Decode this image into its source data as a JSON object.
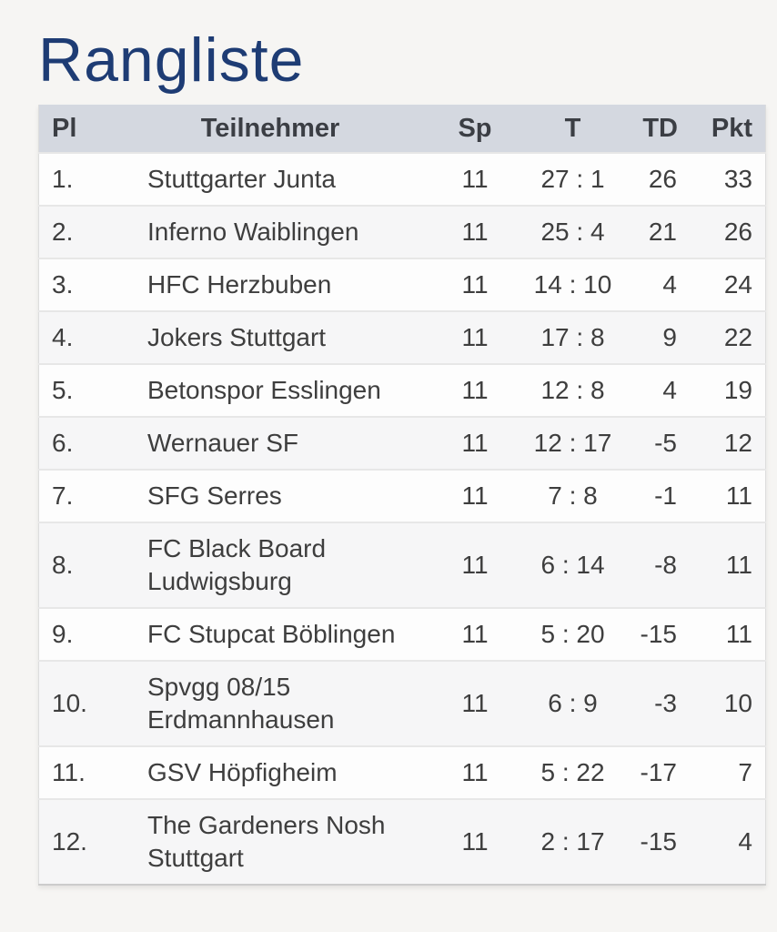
{
  "page": {
    "title": "Rangliste"
  },
  "colors": {
    "title_text": "#1e3c74",
    "header_background": "#d4d8e0",
    "header_text": "#3b3e44",
    "body_text": "#3e3e3e",
    "page_background": "#f6f5f3",
    "row_odd": "#fdfdfd",
    "row_even": "#f6f6f7"
  },
  "chart_data": {
    "type": "table",
    "title": "Rangliste",
    "columns": [
      "Pl",
      "Teilnehmer",
      "Sp",
      "T",
      "TD",
      "Pkt"
    ]
  },
  "table": {
    "columns": [
      {
        "key": "pl",
        "label": "Pl"
      },
      {
        "key": "team",
        "label": "Teilnehmer"
      },
      {
        "key": "sp",
        "label": "Sp"
      },
      {
        "key": "t",
        "label": "T"
      },
      {
        "key": "td",
        "label": "TD"
      },
      {
        "key": "pkt",
        "label": "Pkt"
      }
    ],
    "rows": [
      {
        "pl": "1.",
        "team": "Stuttgarter Junta",
        "sp": "11",
        "t": "27 : 1",
        "td": "26",
        "pkt": "33"
      },
      {
        "pl": "2.",
        "team": "Inferno Waiblingen",
        "sp": "11",
        "t": "25 : 4",
        "td": "21",
        "pkt": "26"
      },
      {
        "pl": "3.",
        "team": "HFC Herzbuben",
        "sp": "11",
        "t": "14 : 10",
        "td": "4",
        "pkt": "24"
      },
      {
        "pl": "4.",
        "team": "Jokers Stuttgart",
        "sp": "11",
        "t": "17 : 8",
        "td": "9",
        "pkt": "22"
      },
      {
        "pl": "5.",
        "team": "Betonspor Esslingen",
        "sp": "11",
        "t": "12 : 8",
        "td": "4",
        "pkt": "19"
      },
      {
        "pl": "6.",
        "team": "Wernauer SF",
        "sp": "11",
        "t": "12 : 17",
        "td": "-5",
        "pkt": "12"
      },
      {
        "pl": "7.",
        "team": "SFG Serres",
        "sp": "11",
        "t": "7 : 8",
        "td": "-1",
        "pkt": "11"
      },
      {
        "pl": "8.",
        "team": "FC Black Board Ludwigsburg",
        "sp": "11",
        "t": "6 : 14",
        "td": "-8",
        "pkt": "11"
      },
      {
        "pl": "9.",
        "team": "FC Stupcat Böblingen",
        "sp": "11",
        "t": "5 : 20",
        "td": "-15",
        "pkt": "11"
      },
      {
        "pl": "10.",
        "team": "Spvgg 08/15 Erdmannhausen",
        "sp": "11",
        "t": "6 : 9",
        "td": "-3",
        "pkt": "10"
      },
      {
        "pl": "11.",
        "team": "GSV Höpfigheim",
        "sp": "11",
        "t": "5 : 22",
        "td": "-17",
        "pkt": "7"
      },
      {
        "pl": "12.",
        "team": "The Gardeners Nosh Stuttgart",
        "sp": "11",
        "t": "2 : 17",
        "td": "-15",
        "pkt": "4"
      }
    ]
  }
}
